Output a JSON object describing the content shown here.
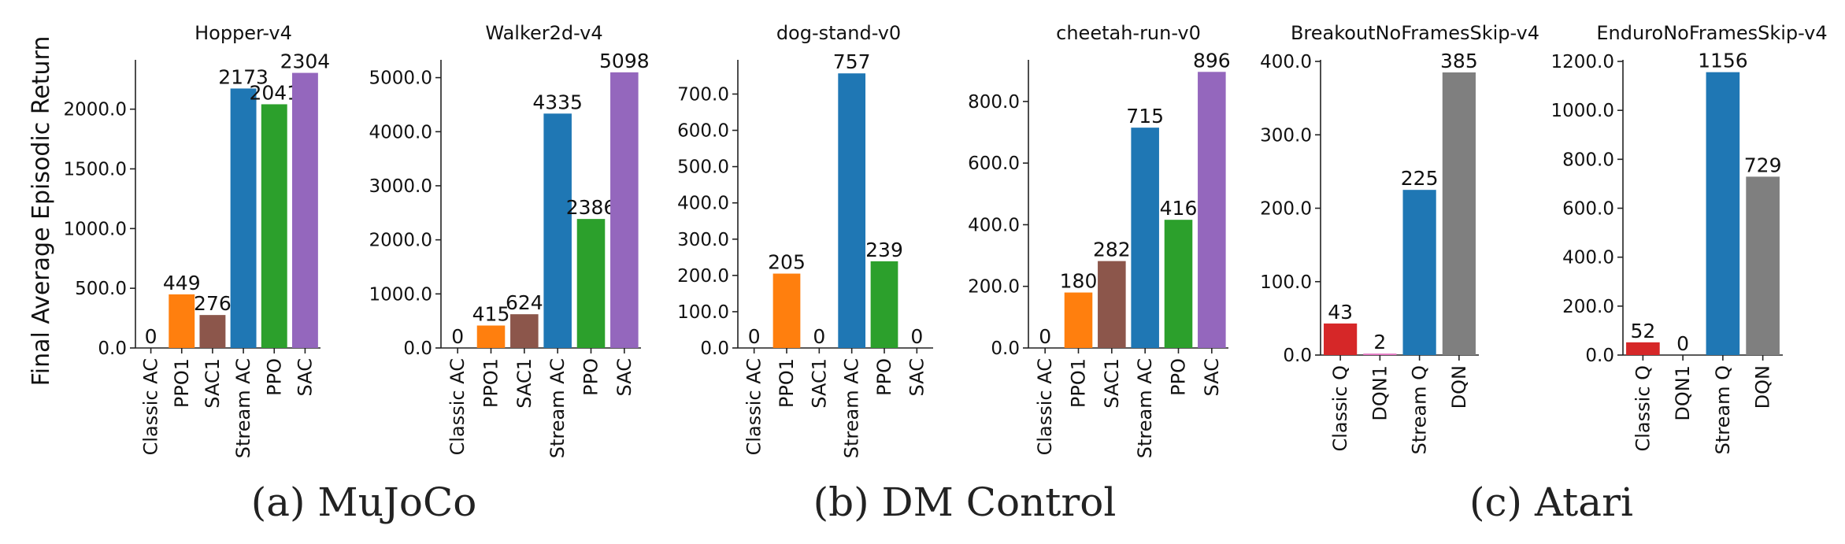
{
  "ylabel": "Final Average Episodic Return",
  "groups": [
    {
      "label": "(a) MuJoCo"
    },
    {
      "label": "(b) DM Control"
    },
    {
      "label": "(c) Atari"
    }
  ],
  "colors": {
    "Classic AC": "#d62728",
    "PPO1": "#ff7f0e",
    "SAC1": "#8c564b",
    "Stream AC": "#1f77b4",
    "PPO": "#2ca02c",
    "SAC": "#9467bd",
    "Classic Q": "#d62728",
    "DQN1": "#e377c2",
    "Stream Q": "#1f77b4",
    "DQN": "#7f7f7f"
  },
  "chart_data": [
    {
      "type": "bar",
      "title": "Hopper-v4",
      "categories": [
        "Classic AC",
        "PPO1",
        "SAC1",
        "Stream AC",
        "PPO",
        "SAC"
      ],
      "values": [
        0,
        449,
        276,
        2173,
        2041,
        2304
      ],
      "value_labels": [
        "0",
        "449",
        "276",
        "2173",
        "2041",
        "2304"
      ],
      "yticks": [
        0,
        500,
        1000,
        1500,
        2000
      ],
      "ytick_labels": [
        "0.0",
        "500.0",
        "1000.0",
        "1500.0",
        "2000.0"
      ],
      "ylim": [
        0,
        2400
      ]
    },
    {
      "type": "bar",
      "title": "Walker2d-v4",
      "categories": [
        "Classic AC",
        "PPO1",
        "SAC1",
        "Stream AC",
        "PPO",
        "SAC"
      ],
      "values": [
        0,
        415,
        624,
        4335,
        2386,
        5098
      ],
      "value_labels": [
        "0",
        "415",
        "624",
        "4335",
        "2386",
        "5098"
      ],
      "yticks": [
        0,
        1000,
        2000,
        3000,
        4000,
        5000
      ],
      "ytick_labels": [
        "0.0",
        "1000.0",
        "2000.0",
        "3000.0",
        "4000.0",
        "5000.0"
      ],
      "ylim": [
        0,
        5300
      ]
    },
    {
      "type": "bar",
      "title": "dog-stand-v0",
      "categories": [
        "Classic AC",
        "PPO1",
        "SAC1",
        "Stream AC",
        "PPO",
        "SAC"
      ],
      "values": [
        0,
        205,
        0,
        757,
        239,
        0
      ],
      "value_labels": [
        "0",
        "205",
        "0",
        "757",
        "239",
        "0"
      ],
      "yticks": [
        0,
        100,
        200,
        300,
        400,
        500,
        600,
        700
      ],
      "ytick_labels": [
        "0.0",
        "100.0",
        "200.0",
        "300.0",
        "400.0",
        "500.0",
        "600.0",
        "700.0"
      ],
      "ylim": [
        0,
        790
      ]
    },
    {
      "type": "bar",
      "title": "cheetah-run-v0",
      "categories": [
        "Classic AC",
        "PPO1",
        "SAC1",
        "Stream AC",
        "PPO",
        "SAC"
      ],
      "values": [
        0,
        180,
        282,
        715,
        416,
        896
      ],
      "value_labels": [
        "0",
        "180",
        "282",
        "715",
        "416",
        "896"
      ],
      "yticks": [
        0,
        200,
        400,
        600,
        800
      ],
      "ytick_labels": [
        "0.0",
        "200.0",
        "400.0",
        "600.0",
        "800.0"
      ],
      "ylim": [
        0,
        930
      ]
    },
    {
      "type": "bar",
      "title": "BreakoutNoFramesSkip-v4",
      "categories": [
        "Classic Q",
        "DQN1",
        "Stream Q",
        "DQN"
      ],
      "values": [
        43,
        2,
        225,
        385
      ],
      "value_labels": [
        "43",
        "2",
        "225",
        "385"
      ],
      "yticks": [
        0,
        100,
        200,
        300,
        400
      ],
      "ytick_labels": [
        "0.0",
        "100.0",
        "200.0",
        "300.0",
        "400.0"
      ],
      "ylim": [
        0,
        400
      ]
    },
    {
      "type": "bar",
      "title": "EnduroNoFramesSkip-v4",
      "categories": [
        "Classic Q",
        "DQN1",
        "Stream Q",
        "DQN"
      ],
      "values": [
        52,
        0,
        1156,
        729
      ],
      "value_labels": [
        "52",
        "0",
        "1156",
        "729"
      ],
      "yticks": [
        0,
        200,
        400,
        600,
        800,
        1000,
        1200
      ],
      "ytick_labels": [
        "0.0",
        "200.0",
        "400.0",
        "600.0",
        "800.0",
        "1000.0",
        "1200.0"
      ],
      "ylim": [
        0,
        1200
      ]
    }
  ]
}
